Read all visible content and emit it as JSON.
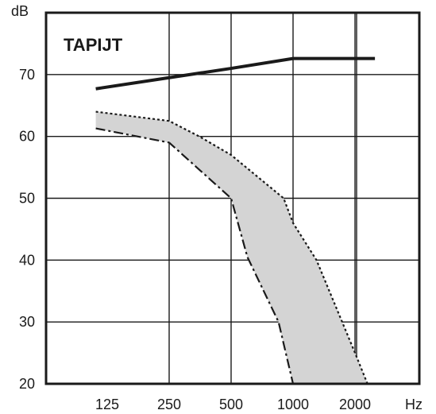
{
  "chart_data": {
    "type": "line",
    "title": "TAPIJT",
    "xlabel": "Hz",
    "ylabel": "dB",
    "x_categories": [
      "125",
      "250",
      "500",
      "1000",
      "2000"
    ],
    "x_scale": "log",
    "ylim": [
      20,
      80
    ],
    "yticks": [
      20,
      30,
      40,
      50,
      60,
      70
    ],
    "grid": true,
    "series": [
      {
        "style": "solid",
        "points": [
          [
            110,
            67.7
          ],
          [
            250,
            69.5
          ],
          [
            500,
            71.0
          ],
          [
            1000,
            72.6
          ],
          [
            2500,
            72.6
          ]
        ]
      },
      {
        "style": "dotted-upper",
        "points": [
          [
            110,
            64.0
          ],
          [
            250,
            62.5
          ],
          [
            350,
            60.0
          ],
          [
            500,
            57.0
          ],
          [
            900,
            50.0
          ],
          [
            1000,
            46.0
          ],
          [
            1300,
            40.0
          ],
          [
            2000,
            25.0
          ],
          [
            2300,
            20.0
          ]
        ]
      },
      {
        "style": "dashdot-lower",
        "points": [
          [
            110,
            61.3
          ],
          [
            250,
            59.0
          ],
          [
            500,
            50.0
          ],
          [
            600,
            40.5
          ],
          [
            850,
            30.0
          ],
          [
            1000,
            20.0
          ]
        ]
      }
    ],
    "shaded_band": {
      "between": [
        "dotted-upper",
        "dashdot-lower"
      ],
      "color": "#d4d4d4"
    }
  }
}
